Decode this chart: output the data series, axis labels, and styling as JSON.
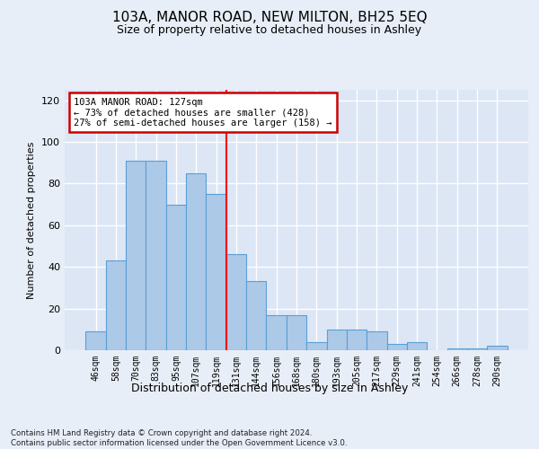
{
  "title_line1": "103A, MANOR ROAD, NEW MILTON, BH25 5EQ",
  "title_line2": "Size of property relative to detached houses in Ashley",
  "xlabel": "Distribution of detached houses by size in Ashley",
  "ylabel": "Number of detached properties",
  "categories": [
    "46sqm",
    "58sqm",
    "70sqm",
    "83sqm",
    "95sqm",
    "107sqm",
    "119sqm",
    "131sqm",
    "144sqm",
    "156sqm",
    "168sqm",
    "180sqm",
    "193sqm",
    "205sqm",
    "217sqm",
    "229sqm",
    "241sqm",
    "254sqm",
    "266sqm",
    "278sqm",
    "290sqm"
  ],
  "values": [
    9,
    43,
    91,
    91,
    70,
    85,
    75,
    46,
    33,
    17,
    17,
    4,
    10,
    10,
    9,
    3,
    4,
    0,
    1,
    1,
    2
  ],
  "bar_color": "#adc9e8",
  "bar_edge_color": "#5a9fd4",
  "red_line_index": 7,
  "annotation_text": "103A MANOR ROAD: 127sqm\n← 73% of detached houses are smaller (428)\n27% of semi-detached houses are larger (158) →",
  "annotation_box_color": "#ffffff",
  "annotation_box_edge_color": "#cc0000",
  "ylim": [
    0,
    125
  ],
  "yticks": [
    0,
    20,
    40,
    60,
    80,
    100,
    120
  ],
  "fig_bg_color": "#e8eef7",
  "ax_bg_color": "#dce6f5",
  "grid_color": "#ffffff",
  "footer_line1": "Contains HM Land Registry data © Crown copyright and database right 2024.",
  "footer_line2": "Contains public sector information licensed under the Open Government Licence v3.0."
}
